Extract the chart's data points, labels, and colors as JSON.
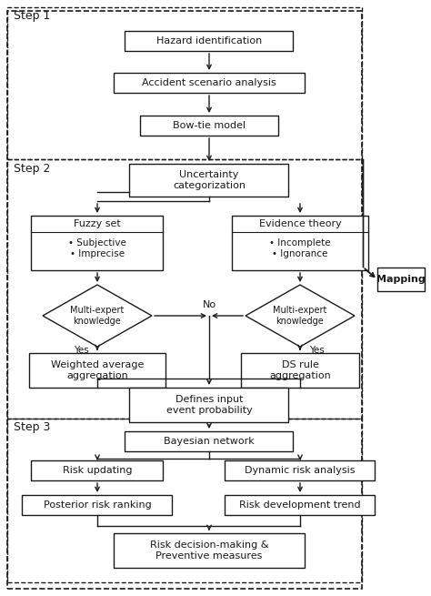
{
  "bg_color": "#ffffff",
  "line_color": "#1a1a1a",
  "box_color": "#ffffff",
  "step1_label": "Step 1",
  "step2_label": "Step 2",
  "step3_label": "Step 3",
  "figsize": [
    4.74,
    6.55
  ],
  "dpi": 100
}
